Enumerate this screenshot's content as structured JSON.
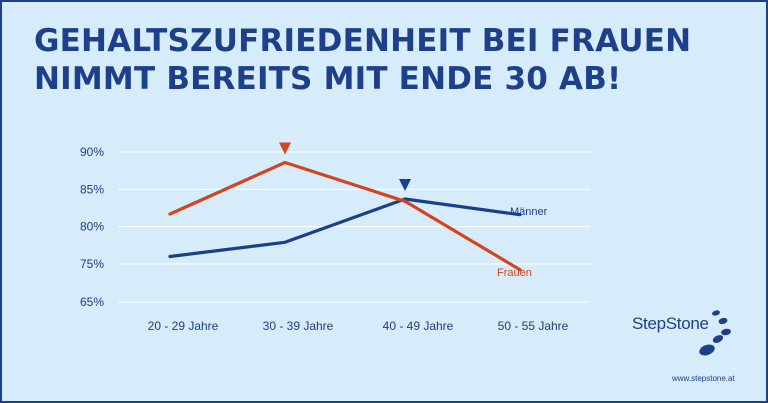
{
  "title_lines": [
    "GEHALTSZUFRIEDENHEIT BEI FRAUEN",
    "NIMMT BEREITS MIT ENDE 30 AB!"
  ],
  "brand": "StepStone",
  "url": "www.stepstone.at",
  "colors": {
    "background": "#d6ecfa",
    "maenner": "#1b3f8b",
    "frauen": "#d2461f",
    "text": "#1f3f7a"
  },
  "chart_data": {
    "type": "line",
    "title": "GEHALTSZUFRIEDENHEIT BEI FRAUEN NIMMT BEREITS MIT ENDE 30 AB!",
    "categories": [
      "20  - 29 Jahre",
      "30  - 39 Jahre",
      "40  - 49 Jahre",
      "50  - 55 Jahre"
    ],
    "y_ticks": [
      {
        "label": "90%",
        "value": 90
      },
      {
        "label": "85%",
        "value": 85
      },
      {
        "label": "80%",
        "value": 80
      },
      {
        "label": "75%",
        "value": 75
      },
      {
        "label": "65%",
        "value": 65
      }
    ],
    "axis_break": "uneven spacing between 75% and 65%",
    "grid": true,
    "series": [
      {
        "name": "Männer",
        "values": [
          76.0,
          77.9,
          83.7,
          81.6
        ],
        "color": "#1b3f8b",
        "peak_marker_index": 2
      },
      {
        "name": "Frauen",
        "values": [
          81.7,
          88.6,
          83.4,
          73.5
        ],
        "color": "#d2461f",
        "peak_marker_index": 1
      }
    ]
  }
}
